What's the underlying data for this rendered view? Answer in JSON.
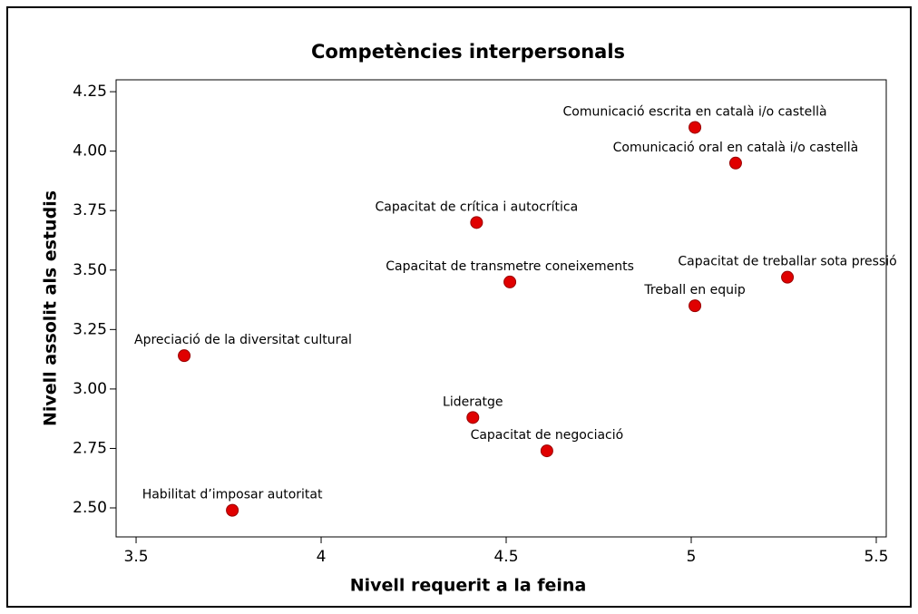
{
  "chart_data": {
    "type": "scatter",
    "title": "Competències interpersonals",
    "x_label": "Nivell requerit a la feina",
    "y_label": "Nivell assolit als estudis",
    "color": "#e00000",
    "labels": [
      "Comunicació escrita en català i/o castellà",
      "Comunicació oral en català i/o castellà",
      "Capacitat de crítica i autocrítica",
      "Capacitat de transmetre coneixements",
      "Capacitat de treballar sota pressió",
      "Treball en equip",
      "Apreciació de la diversitat cultural",
      "Lideratge",
      "Capacitat de negociació",
      "Habilitat d’imposar autoritat"
    ],
    "x": [
      5.01,
      5.12,
      4.42,
      4.51,
      5.26,
      5.01,
      3.63,
      4.41,
      4.61,
      3.76
    ],
    "y": [
      4.1,
      3.95,
      3.7,
      3.45,
      3.47,
      3.35,
      3.14,
      2.88,
      2.74,
      2.49
    ],
    "xlim": [
      3.446,
      5.527
    ],
    "ylim": [
      2.378,
      4.3
    ],
    "xticks": [
      3.5,
      4.0,
      4.5,
      5.0,
      5.5
    ],
    "yticks": [
      {
        "value": 2.5,
        "label": "2.50"
      },
      {
        "value": 2.75,
        "label": "2.75"
      },
      {
        "value": 3.0,
        "label": "3.00"
      },
      {
        "value": 3.25,
        "label": "3.25"
      },
      {
        "value": 3.5,
        "label": "3.50"
      },
      {
        "value": 3.75,
        "label": "3.75"
      },
      {
        "value": 4.0,
        "label": "4.00"
      },
      {
        "value": 4.25,
        "label": "4.25"
      }
    ]
  }
}
